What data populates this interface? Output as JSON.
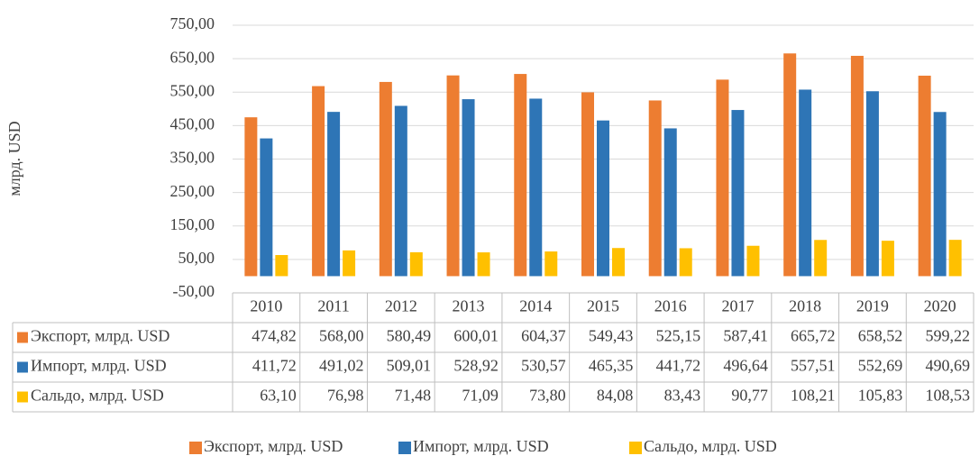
{
  "chart_data": {
    "type": "bar",
    "y_label": "млрд. USD",
    "categories": [
      "2010",
      "2011",
      "2012",
      "2013",
      "2014",
      "2015",
      "2016",
      "2017",
      "2018",
      "2019",
      "2020"
    ],
    "series": [
      {
        "name": "Экспорт, млрд. USD",
        "color": "#ed7d31",
        "values": [
          474.82,
          568.0,
          580.49,
          600.01,
          604.37,
          549.43,
          525.15,
          587.41,
          665.72,
          658.52,
          599.22
        ],
        "value_labels": [
          "474,82",
          "568,00",
          "580,49",
          "600,01",
          "604,37",
          "549,43",
          "525,15",
          "587,41",
          "665,72",
          "658,52",
          "599,22"
        ]
      },
      {
        "name": "Импорт, млрд. USD",
        "color": "#2e75b6",
        "values": [
          411.72,
          491.02,
          509.01,
          528.92,
          530.57,
          465.35,
          441.72,
          496.64,
          557.51,
          552.69,
          490.69
        ],
        "value_labels": [
          "411,72",
          "491,02",
          "509,01",
          "528,92",
          "530,57",
          "465,35",
          "441,72",
          "496,64",
          "557,51",
          "552,69",
          "490,69"
        ]
      },
      {
        "name": "Сальдо, млрд. USD",
        "color": "#ffc000",
        "values": [
          63.1,
          76.98,
          71.48,
          71.09,
          73.8,
          84.08,
          83.43,
          90.77,
          108.21,
          105.83,
          108.53
        ],
        "value_labels": [
          "63,10",
          "76,98",
          "71,48",
          "71,09",
          "73,80",
          "84,08",
          "83,43",
          "90,77",
          "108,21",
          "105,83",
          "108,53"
        ]
      }
    ],
    "ylim": [
      -50,
      750
    ],
    "yticks": [
      {
        "value": -50,
        "label": "-50,00"
      },
      {
        "value": 50,
        "label": "50,00"
      },
      {
        "value": 150,
        "label": "150,00"
      },
      {
        "value": 250,
        "label": "250,00"
      },
      {
        "value": 350,
        "label": "350,00"
      },
      {
        "value": 450,
        "label": "450,00"
      },
      {
        "value": 550,
        "label": "550,00"
      },
      {
        "value": 650,
        "label": "650,00"
      },
      {
        "value": 750,
        "label": "750,00"
      }
    ],
    "grid": true,
    "legend": "bottom"
  }
}
